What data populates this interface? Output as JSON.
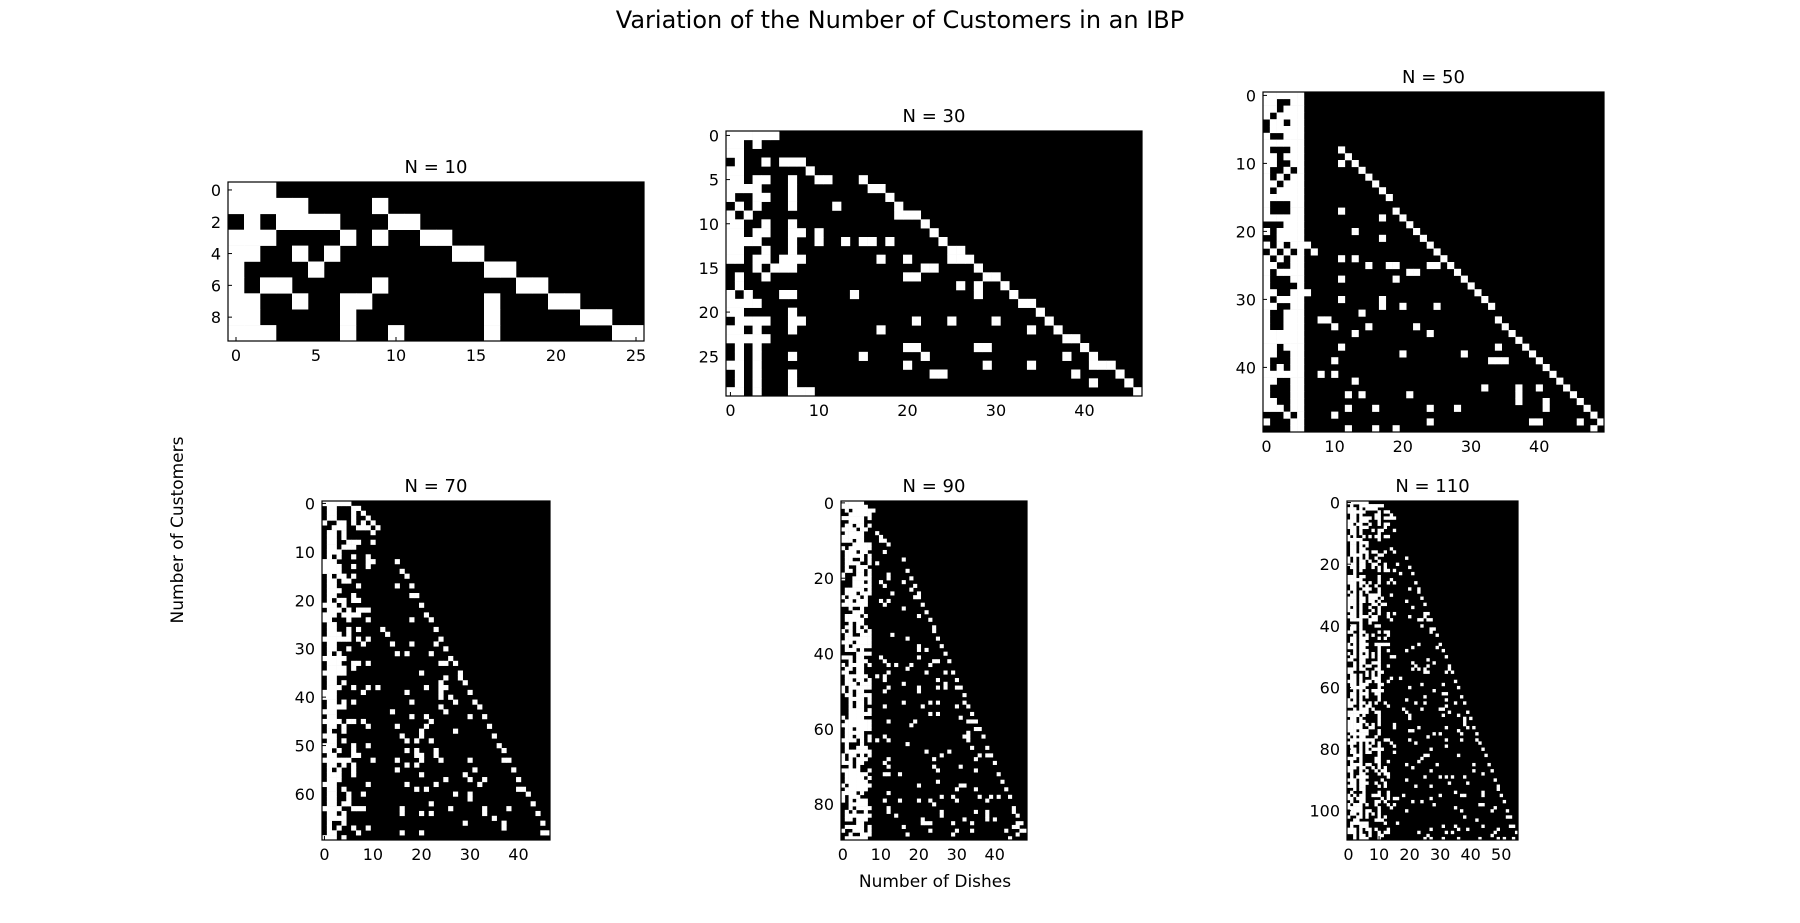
{
  "figure": {
    "title": "Variation of the Number of Customers in an IBP",
    "ylabel": "Number of Customers",
    "xlabel": "Number of Dishes"
  },
  "chart_data": [
    {
      "type": "heatmap",
      "title": "N = 10",
      "customers": 10,
      "dishes": 26,
      "xticks": [
        0,
        5,
        10,
        15,
        20,
        25
      ],
      "yticks": [
        0,
        2,
        4,
        6,
        8
      ],
      "colors": {
        "on": "#ffffff",
        "off": "#000000"
      },
      "seed": 11
    },
    {
      "type": "heatmap",
      "title": "N = 30",
      "customers": 30,
      "dishes": 47,
      "xticks": [
        0,
        10,
        20,
        30,
        40
      ],
      "yticks": [
        0,
        5,
        10,
        15,
        20,
        25
      ],
      "colors": {
        "on": "#ffffff",
        "off": "#000000"
      },
      "seed": 31
    },
    {
      "type": "heatmap",
      "title": "N = 50",
      "customers": 50,
      "dishes": 50,
      "xticks": [
        0,
        10,
        20,
        30,
        40
      ],
      "yticks": [
        0,
        10,
        20,
        30,
        40
      ],
      "colors": {
        "on": "#ffffff",
        "off": "#000000"
      },
      "seed": 53
    },
    {
      "type": "heatmap",
      "title": "N = 70",
      "customers": 70,
      "dishes": 47,
      "xticks": [
        0,
        10,
        20,
        30,
        40
      ],
      "yticks": [
        0,
        10,
        20,
        30,
        40,
        50,
        60
      ],
      "colors": {
        "on": "#ffffff",
        "off": "#000000"
      },
      "seed": 71
    },
    {
      "type": "heatmap",
      "title": "N = 90",
      "customers": 90,
      "dishes": 49,
      "xticks": [
        0,
        10,
        20,
        30,
        40
      ],
      "yticks": [
        0,
        20,
        40,
        60,
        80
      ],
      "colors": {
        "on": "#ffffff",
        "off": "#000000"
      },
      "seed": 97
    },
    {
      "type": "heatmap",
      "title": "N = 110",
      "customers": 110,
      "dishes": 56,
      "xticks": [
        0,
        10,
        20,
        30,
        40,
        50
      ],
      "yticks": [
        0,
        20,
        40,
        60,
        80,
        100
      ],
      "colors": {
        "on": "#ffffff",
        "off": "#000000"
      },
      "seed": 113
    }
  ]
}
